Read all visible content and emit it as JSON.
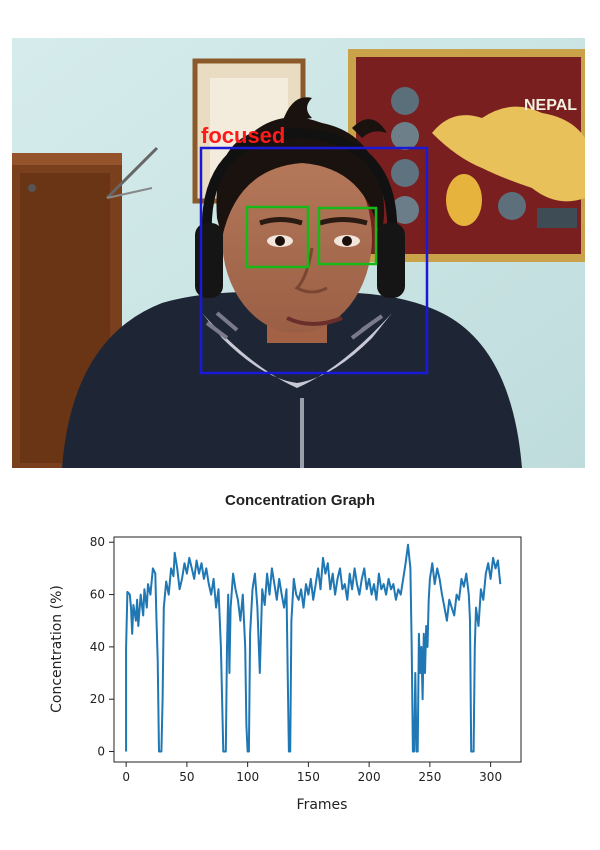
{
  "photo": {
    "status_label": "focused",
    "poster_text": "NEPAL",
    "colors": {
      "face_box": "#1a1ad6",
      "eye_box": "#19b819",
      "status": "#ff1a1a"
    }
  },
  "figure_caption": "Concentration Graph",
  "chart_data": {
    "type": "line",
    "title": "",
    "xlabel": "Frames",
    "ylabel": "Concentration (%)",
    "xlim": [
      -10,
      325
    ],
    "ylim": [
      -4,
      82
    ],
    "xticks": [
      0,
      50,
      100,
      150,
      200,
      250,
      300
    ],
    "yticks": [
      0,
      20,
      40,
      60,
      80
    ],
    "grid": false,
    "series": [
      {
        "color": "#1f77b4",
        "points": [
          [
            0,
            0
          ],
          [
            0,
            40
          ],
          [
            1,
            61
          ],
          [
            3,
            60
          ],
          [
            4,
            55
          ],
          [
            5,
            45
          ],
          [
            6,
            56
          ],
          [
            8,
            50
          ],
          [
            9,
            58
          ],
          [
            10,
            48
          ],
          [
            12,
            60
          ],
          [
            14,
            52
          ],
          [
            15,
            62
          ],
          [
            17,
            55
          ],
          [
            18,
            64
          ],
          [
            20,
            60
          ],
          [
            22,
            70
          ],
          [
            24,
            68
          ],
          [
            25,
            50
          ],
          [
            26,
            35
          ],
          [
            27,
            0
          ],
          [
            28,
            0
          ],
          [
            29,
            0
          ],
          [
            30,
            20
          ],
          [
            31,
            55
          ],
          [
            33,
            65
          ],
          [
            35,
            60
          ],
          [
            37,
            70
          ],
          [
            39,
            67
          ],
          [
            40,
            76
          ],
          [
            42,
            70
          ],
          [
            44,
            62
          ],
          [
            46,
            66
          ],
          [
            48,
            72
          ],
          [
            50,
            68
          ],
          [
            52,
            74
          ],
          [
            54,
            70
          ],
          [
            56,
            66
          ],
          [
            58,
            73
          ],
          [
            60,
            68
          ],
          [
            62,
            72
          ],
          [
            64,
            66
          ],
          [
            66,
            70
          ],
          [
            68,
            64
          ],
          [
            70,
            60
          ],
          [
            72,
            66
          ],
          [
            74,
            55
          ],
          [
            76,
            62
          ],
          [
            78,
            40
          ],
          [
            79,
            20
          ],
          [
            80,
            0
          ],
          [
            82,
            0
          ],
          [
            83,
            40
          ],
          [
            84,
            60
          ],
          [
            85,
            30
          ],
          [
            86,
            55
          ],
          [
            88,
            68
          ],
          [
            90,
            62
          ],
          [
            92,
            58
          ],
          [
            94,
            50
          ],
          [
            96,
            60
          ],
          [
            98,
            40
          ],
          [
            99,
            10
          ],
          [
            100,
            0
          ],
          [
            101,
            0
          ],
          [
            102,
            45
          ],
          [
            104,
            62
          ],
          [
            106,
            68
          ],
          [
            108,
            55
          ],
          [
            110,
            30
          ],
          [
            112,
            62
          ],
          [
            114,
            56
          ],
          [
            116,
            68
          ],
          [
            118,
            60
          ],
          [
            120,
            70
          ],
          [
            122,
            64
          ],
          [
            124,
            58
          ],
          [
            126,
            66
          ],
          [
            128,
            60
          ],
          [
            130,
            55
          ],
          [
            132,
            62
          ],
          [
            133,
            30
          ],
          [
            134,
            0
          ],
          [
            135,
            0
          ],
          [
            136,
            50
          ],
          [
            138,
            66
          ],
          [
            140,
            60
          ],
          [
            142,
            58
          ],
          [
            144,
            62
          ],
          [
            146,
            55
          ],
          [
            148,
            64
          ],
          [
            150,
            60
          ],
          [
            152,
            66
          ],
          [
            154,
            58
          ],
          [
            156,
            64
          ],
          [
            158,
            70
          ],
          [
            160,
            62
          ],
          [
            162,
            74
          ],
          [
            164,
            68
          ],
          [
            166,
            72
          ],
          [
            168,
            62
          ],
          [
            170,
            68
          ],
          [
            172,
            60
          ],
          [
            174,
            66
          ],
          [
            176,
            70
          ],
          [
            178,
            62
          ],
          [
            180,
            64
          ],
          [
            182,
            58
          ],
          [
            184,
            68
          ],
          [
            186,
            62
          ],
          [
            188,
            70
          ],
          [
            190,
            64
          ],
          [
            192,
            60
          ],
          [
            194,
            66
          ],
          [
            196,
            70
          ],
          [
            198,
            62
          ],
          [
            200,
            66
          ],
          [
            202,
            60
          ],
          [
            204,
            64
          ],
          [
            206,
            58
          ],
          [
            208,
            68
          ],
          [
            210,
            62
          ],
          [
            212,
            64
          ],
          [
            214,
            60
          ],
          [
            216,
            66
          ],
          [
            218,
            62
          ],
          [
            220,
            64
          ],
          [
            222,
            58
          ],
          [
            224,
            62
          ],
          [
            226,
            60
          ],
          [
            228,
            66
          ],
          [
            230,
            72
          ],
          [
            232,
            79
          ],
          [
            234,
            70
          ],
          [
            235,
            40
          ],
          [
            236,
            0
          ],
          [
            237,
            0
          ],
          [
            238,
            30
          ],
          [
            239,
            0
          ],
          [
            240,
            0
          ],
          [
            241,
            45
          ],
          [
            242,
            30
          ],
          [
            243,
            40
          ],
          [
            244,
            20
          ],
          [
            245,
            45
          ],
          [
            246,
            30
          ],
          [
            247,
            48
          ],
          [
            248,
            40
          ],
          [
            249,
            58
          ],
          [
            250,
            66
          ],
          [
            252,
            72
          ],
          [
            254,
            64
          ],
          [
            256,
            70
          ],
          [
            258,
            66
          ],
          [
            260,
            60
          ],
          [
            262,
            55
          ],
          [
            264,
            50
          ],
          [
            266,
            58
          ],
          [
            268,
            55
          ],
          [
            270,
            52
          ],
          [
            272,
            60
          ],
          [
            274,
            58
          ],
          [
            276,
            66
          ],
          [
            278,
            63
          ],
          [
            280,
            68
          ],
          [
            282,
            60
          ],
          [
            283,
            50
          ],
          [
            284,
            0
          ],
          [
            286,
            0
          ],
          [
            287,
            40
          ],
          [
            288,
            55
          ],
          [
            290,
            48
          ],
          [
            292,
            62
          ],
          [
            294,
            58
          ],
          [
            296,
            68
          ],
          [
            298,
            72
          ],
          [
            300,
            66
          ],
          [
            302,
            74
          ],
          [
            304,
            70
          ],
          [
            306,
            73
          ],
          [
            308,
            64
          ]
        ]
      }
    ]
  }
}
